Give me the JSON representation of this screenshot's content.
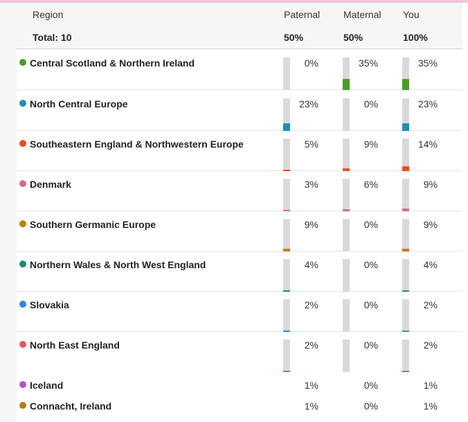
{
  "header": {
    "region_label": "Region",
    "total_label": "Total: 10",
    "columns": [
      {
        "label": "Paternal",
        "total": "50%"
      },
      {
        "label": "Maternal",
        "total": "50%"
      },
      {
        "label": "You",
        "total": "100%"
      }
    ]
  },
  "rows": [
    {
      "name": "Central Scotland & Northern Ireland",
      "color": "#4a9b2a",
      "paternal": "0%",
      "maternal": "35%",
      "you": "35%",
      "paternal_level": 0,
      "maternal_level": 35,
      "you_level": 35,
      "has_bars": true
    },
    {
      "name": "North Central Europe",
      "color": "#1f8fb0",
      "paternal": "23%",
      "maternal": "0%",
      "you": "23%",
      "paternal_level": 23,
      "maternal_level": 0,
      "you_level": 23,
      "has_bars": true
    },
    {
      "name": "Southeastern England & Northwestern Europe",
      "color": "#ef4b1e",
      "paternal": "5%",
      "maternal": "9%",
      "you": "14%",
      "paternal_level": 5,
      "maternal_level": 9,
      "you_level": 14,
      "has_bars": true
    },
    {
      "name": "Denmark",
      "color": "#d46a8e",
      "paternal": "3%",
      "maternal": "6%",
      "you": "9%",
      "paternal_level": 3,
      "maternal_level": 6,
      "you_level": 9,
      "has_bars": true
    },
    {
      "name": "Southern Germanic Europe",
      "color": "#c57a16",
      "paternal": "9%",
      "maternal": "0%",
      "you": "9%",
      "paternal_level": 9,
      "maternal_level": 0,
      "you_level": 9,
      "has_bars": true
    },
    {
      "name": "Northern Wales & North West England",
      "color": "#1a8c6e",
      "paternal": "4%",
      "maternal": "0%",
      "you": "4%",
      "paternal_level": 4,
      "maternal_level": 0,
      "you_level": 4,
      "has_bars": true
    },
    {
      "name": "Slovakia",
      "color": "#2f86e0",
      "paternal": "2%",
      "maternal": "0%",
      "you": "2%",
      "paternal_level": 2,
      "maternal_level": 0,
      "you_level": 2,
      "has_bars": true
    },
    {
      "name": "North East England",
      "color": "#e05a5a",
      "paternal": "2%",
      "maternal": "0%",
      "you": "2%",
      "paternal_level": 2,
      "maternal_level": 0,
      "you_level": 2,
      "has_bars": true
    },
    {
      "name": "Iceland",
      "color": "#b64fc8",
      "paternal": "1%",
      "maternal": "0%",
      "you": "1%",
      "paternal_level": 1,
      "maternal_level": 0,
      "you_level": 1,
      "has_bars": false
    },
    {
      "name": "Connacht, Ireland",
      "color": "#b87a1a",
      "paternal": "1%",
      "maternal": "0%",
      "you": "1%",
      "paternal_level": 1,
      "maternal_level": 0,
      "you_level": 1,
      "has_bars": false
    }
  ]
}
